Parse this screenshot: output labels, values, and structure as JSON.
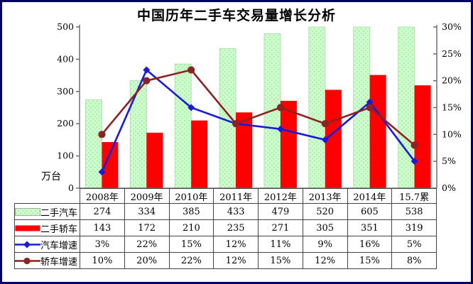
{
  "title": "中国历年二手车交易量增长分析",
  "frame": {
    "border_color": "#000066",
    "background": "#ffffff"
  },
  "chart_data": {
    "type": "combo-bar-line",
    "title": "中国历年二手车交易量增长分析",
    "categories": [
      "2008年",
      "2009年",
      "2010年",
      "2011年",
      "2012年",
      "2013年",
      "2014年",
      "15.7累"
    ],
    "series": [
      {
        "name": "二手汽车",
        "kind": "bar",
        "axis": "left",
        "icon": "green-bar-swatch-icon",
        "color": "#ccffcc",
        "dot_color": "#a2e2a2",
        "border_color": "#b5dcb5",
        "values": [
          274,
          334,
          385,
          433,
          479,
          520,
          605,
          538
        ],
        "table_values": [
          "274",
          "334",
          "385",
          "433",
          "479",
          "520",
          "605",
          "538"
        ]
      },
      {
        "name": "二手轿车",
        "kind": "bar",
        "axis": "left",
        "icon": "red-bar-swatch-icon",
        "color": "#ff0000",
        "values": [
          143,
          172,
          210,
          235,
          271,
          305,
          351,
          319
        ],
        "table_values": [
          "143",
          "172",
          "210",
          "235",
          "271",
          "305",
          "351",
          "319"
        ]
      },
      {
        "name": "汽车增速",
        "kind": "line",
        "axis": "right",
        "marker": "diamond",
        "icon": "blue-line-swatch-icon",
        "color": "#1a1ad9",
        "values": [
          3,
          22,
          15,
          12,
          11,
          9,
          16,
          5
        ],
        "table_values": [
          "3%",
          "22%",
          "15%",
          "12%",
          "11%",
          "9%",
          "16%",
          "5%"
        ]
      },
      {
        "name": "轿车增速",
        "kind": "line",
        "axis": "right",
        "marker": "circle",
        "icon": "darkred-line-swatch-icon",
        "color": "#8b2323",
        "values": [
          10,
          20,
          22,
          12,
          15,
          12,
          15,
          8
        ],
        "table_values": [
          "10%",
          "20%",
          "22%",
          "12%",
          "15%",
          "12%",
          "15%",
          "8%"
        ]
      }
    ],
    "left_axis": {
      "min": 0,
      "max": 500,
      "tick_labels": [
        "0",
        "100",
        "200",
        "300",
        "400",
        "500"
      ],
      "unit": "万台"
    },
    "right_axis": {
      "min": 0,
      "max": 30,
      "tick_labels": [
        "0%",
        "5%",
        "10%",
        "15%",
        "20%",
        "25%",
        "30%"
      ]
    },
    "grid": false,
    "legend_position": "table-left-column"
  }
}
